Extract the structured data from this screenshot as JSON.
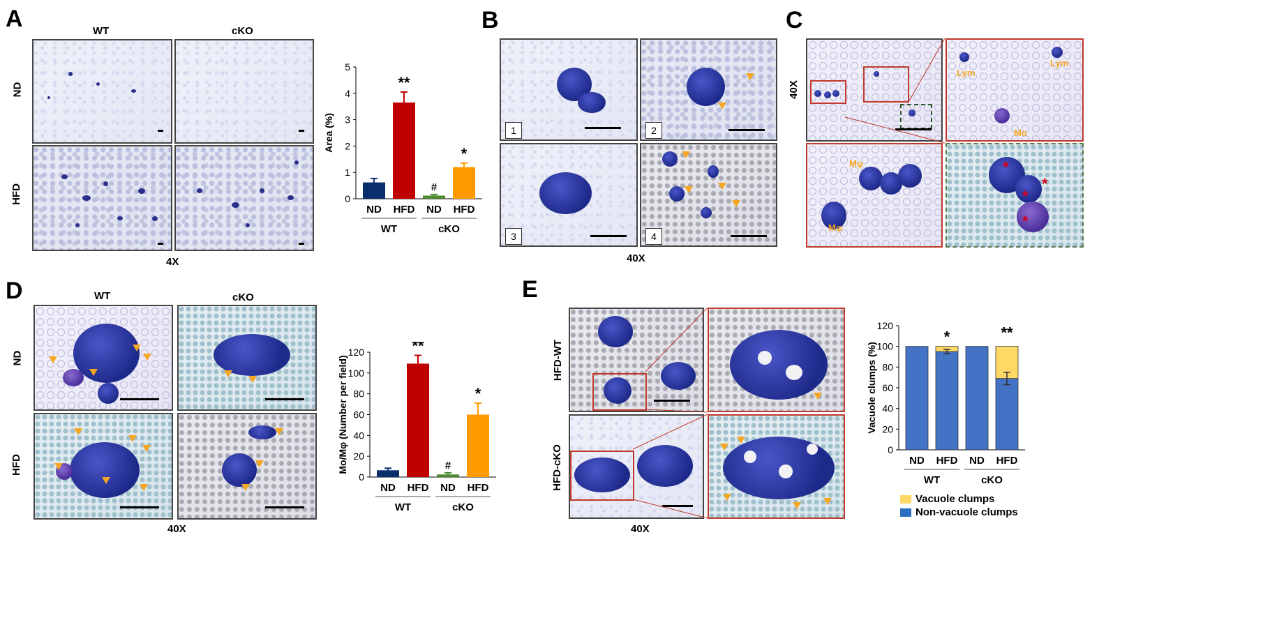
{
  "panels": {
    "A": {
      "letter": "A",
      "col_wt": "WT",
      "col_cko": "cKO",
      "row_nd": "ND",
      "row_hfd": "HFD",
      "magnification": "4X"
    },
    "B": {
      "letter": "B",
      "numbers": [
        "1",
        "2",
        "3",
        "4"
      ],
      "magnification": "40X"
    },
    "C": {
      "letter": "C",
      "magnification": "40X",
      "labels": {
        "lym1": "Lym",
        "lym2": "Lym",
        "mo": "Mo",
        "mphi1": "Mφ",
        "mphi2": "Mφ"
      },
      "star": "*"
    },
    "D": {
      "letter": "D",
      "col_wt": "WT",
      "col_cko": "cKO",
      "row_nd": "ND",
      "row_hfd": "HFD",
      "magnification": "40X"
    },
    "E": {
      "letter": "E",
      "row_wt": "HFD-WT",
      "row_cko": "HFD-cKO",
      "magnification": "40X"
    }
  },
  "chart_data": [
    {
      "id": "A",
      "type": "bar",
      "ylabel": "Area (%)",
      "ylim": [
        0,
        5
      ],
      "yticks": [
        0,
        1,
        2,
        3,
        4,
        5
      ],
      "categories": [
        "ND",
        "HFD",
        "ND",
        "HFD"
      ],
      "groups": [
        {
          "label": "WT",
          "span": [
            0,
            1
          ]
        },
        {
          "label": "cKO",
          "span": [
            2,
            3
          ]
        }
      ],
      "values": [
        0.62,
        3.65,
        0.12,
        1.2
      ],
      "errors": [
        0.15,
        0.4,
        0.04,
        0.15
      ],
      "colors": [
        "#0b2d6b",
        "#c00000",
        "#4e8a2e",
        "#ff9a00"
      ],
      "annotations": [
        "",
        "**",
        "#",
        "*"
      ]
    },
    {
      "id": "D",
      "type": "bar",
      "ylabel": "Mo/Mφ (Number per field)",
      "ylim": [
        0,
        120
      ],
      "yticks": [
        0,
        20,
        40,
        60,
        80,
        100,
        120
      ],
      "categories": [
        "ND",
        "HFD",
        "ND",
        "HFD"
      ],
      "groups": [
        {
          "label": "WT",
          "span": [
            0,
            1
          ]
        },
        {
          "label": "cKO",
          "span": [
            2,
            3
          ]
        }
      ],
      "values": [
        6.5,
        109,
        2.5,
        60
      ],
      "errors": [
        2,
        8,
        1.5,
        11
      ],
      "colors": [
        "#0b2d6b",
        "#c00000",
        "#4e8a2e",
        "#ff9a00"
      ],
      "annotations": [
        "",
        "**",
        "#",
        "*"
      ]
    },
    {
      "id": "E",
      "type": "bar",
      "stacked": true,
      "ylabel": "Vacuole clumps (%)",
      "ylim": [
        0,
        120
      ],
      "yticks": [
        0,
        20,
        40,
        60,
        80,
        100,
        120
      ],
      "categories": [
        "ND",
        "HFD",
        "ND",
        "HFD"
      ],
      "groups": [
        {
          "label": "WT",
          "span": [
            0,
            1
          ]
        },
        {
          "label": "cKO",
          "span": [
            2,
            3
          ]
        }
      ],
      "series": [
        {
          "name": "Non-vacuole clumps",
          "color": "#4472c4",
          "values": [
            100,
            95,
            100,
            69
          ]
        },
        {
          "name": "Vacuole clumps",
          "color": "#ffd966",
          "values": [
            0,
            5,
            0,
            31
          ]
        }
      ],
      "errors": [
        0,
        2,
        0,
        6
      ],
      "annotations": [
        "",
        "*",
        "",
        "**"
      ],
      "legend": [
        "Vacuole clumps",
        "Non-vacuole clumps"
      ]
    }
  ]
}
